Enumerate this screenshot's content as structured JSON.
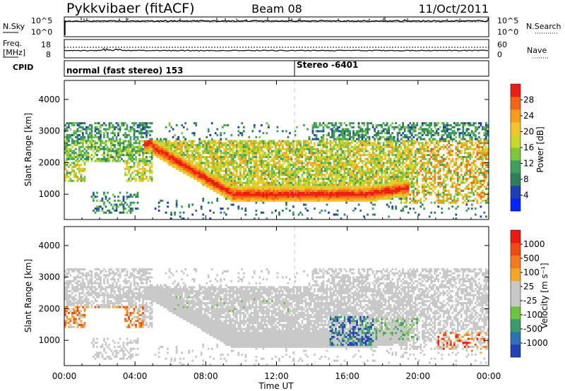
{
  "header": {
    "station": "Pykkvibaer (fitACF)",
    "beam": "Beam 08",
    "date": "11/Oct/2011"
  },
  "noise_panel": {
    "left_label": "N.Sky",
    "left_ticks": [
      "10^5",
      "10^0"
    ],
    "right_ticks": [
      "10^5",
      "10^0"
    ],
    "right_label": "N.Search"
  },
  "freq_panel": {
    "left_label_line1": "Freq.",
    "left_label_line2": "[MHz]",
    "left_ticks": [
      "18",
      "8"
    ],
    "right_ticks": [
      "60",
      "0"
    ],
    "right_label": "Nave"
  },
  "cpid_panel": {
    "label": "CPID",
    "segments": [
      {
        "start_hour": 0,
        "text": "normal (fast stereo) 153"
      },
      {
        "start_hour": 13.0,
        "text": "Stereo -6401"
      }
    ]
  },
  "x_axis": {
    "title": "Time UT",
    "ticks": [
      "00:00",
      "04:00",
      "08:00",
      "12:00",
      "16:00",
      "20:00",
      "00:00"
    ]
  },
  "chart_data": [
    {
      "type": "heatmap",
      "name": "power",
      "ylabel": "Slant Range [km]",
      "yticks": [
        1000,
        2000,
        3000,
        4000
      ],
      "ylim": [
        200,
        4600
      ],
      "xlim_hours": [
        0,
        24
      ],
      "colorbar": {
        "label": "Power [dB]",
        "ticks": [
          "28",
          "24",
          "20",
          "16",
          "12",
          "8",
          "4"
        ],
        "colors": [
          "#0026ff",
          "#1f3fb4",
          "#2f7f5a",
          "#3f9f60",
          "#7fc63c",
          "#c9d72b",
          "#f2c62a",
          "#f79a1e",
          "#f36417",
          "#ee1d13"
        ]
      }
    },
    {
      "type": "heatmap",
      "name": "velocity",
      "ylabel": "Slant Range [km]",
      "yticks": [
        1000,
        2000,
        3000,
        4000
      ],
      "ylim": [
        200,
        4600
      ],
      "xlim_hours": [
        0,
        24
      ],
      "colorbar": {
        "label": "Velocity [m s⁻¹]",
        "ticks": [
          "1000",
          "500",
          "100",
          "25",
          "-25",
          "-100",
          "-500",
          "-1000"
        ],
        "colors": [
          "#2143b5",
          "#2f6fb5",
          "#3d9a6c",
          "#6cc241",
          "#c8c8c8",
          "#c8c8c8",
          "#f3a72a",
          "#f47a1f",
          "#f04a14",
          "#ea1b12"
        ]
      }
    }
  ]
}
